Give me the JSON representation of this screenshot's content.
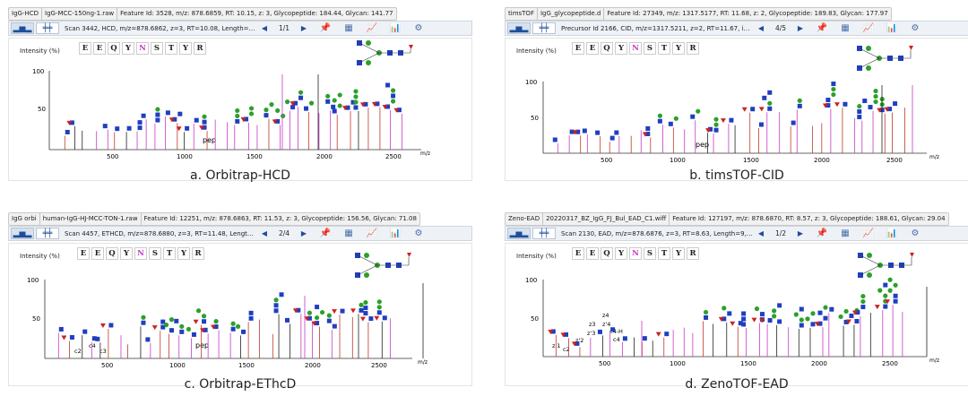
{
  "panels": [
    {
      "id": "a",
      "tabs": [
        "IgG-HCD",
        "IgG-MCC-150ng-1.raw"
      ],
      "feature": "Feature Id: 3528, m/z: 878.6859, RT: 10.15, z: 3, Glycopeptide: 184.44, Glycan: 141.77",
      "scan": "Scan 3442, HCD, m/z=878.6862, z=3, RT=10.08, Length=9, ppm=-1...",
      "page": "1/1",
      "ylabel": "Intensity (%)",
      "ticks_y": [
        "100",
        "50"
      ],
      "ticks_x": [
        "500",
        "1000",
        "1500",
        "2000",
        "2500"
      ],
      "xunit": "m/z",
      "pep_label": "pep",
      "caption": "a. Orbitrap-HCD"
    },
    {
      "id": "b",
      "tabs": [
        "timsTOF",
        "IgG_glycopeptide.d"
      ],
      "feature": "Feature Id: 27349, m/z: 1317.5177, RT: 11.68, z: 2, Glycopeptide: 189.83, Glycan: 177.97",
      "scan": "Precursor Id 2166, CID, m/z=1317.5211, z=2, RT=11.67, im=1.2827, ...",
      "page": "4/5",
      "ylabel": "Intensity (%)",
      "ticks_y": [
        "100",
        "50"
      ],
      "ticks_x": [
        "500",
        "1000",
        "1500",
        "2000",
        "2500"
      ],
      "xunit": "m/z",
      "pep_label": "pep",
      "caption": "b. timsTOF-CID"
    },
    {
      "id": "c",
      "tabs": [
        "IgG orbi",
        "human-IgG-HJ-MCC-TON-1.raw"
      ],
      "feature": "Feature Id: 12251, m/z: 878.6863, RT: 11.53, z: 3, Glycopeptide: 156.56, Glycan: 71.08",
      "scan": "Scan 4457, ETHCD, m/z=878.6880, z=3, RT=11.48, Length=9, ppm=-...",
      "page": "2/4",
      "ylabel": "Intensity (%)",
      "ticks_y": [
        "100",
        "50"
      ],
      "ticks_x": [
        "500",
        "1000",
        "1500",
        "2000",
        "2500"
      ],
      "xunit": "m/z",
      "pep_label": "pep",
      "ion_labels": [
        "c2",
        "c3",
        "c4"
      ],
      "caption": "c. Orbitrap-EThcD"
    },
    {
      "id": "d",
      "tabs": [
        "Zeno-EAD",
        "20220317_BZ_IgG_FJ_Bul_EAD_C1.wiff"
      ],
      "feature": "Feature Id: 127197, m/z: 878.6870, RT: 8.57, z: 3, Glycopeptide: 188.61, Glycan: 29.04",
      "scan": "Scan 2130, EAD, m/z=878.6876, z=3, RT=8.63, Length=9, ppm=...",
      "page": "1/2",
      "ylabel": "Intensity (%)",
      "ticks_y": [
        "100",
        "50"
      ],
      "ticks_x": [
        "500",
        "1000",
        "1500",
        "2000",
        "2500"
      ],
      "xunit": "m/z",
      "ion_labels": [
        "z'1",
        "c2",
        "z'2",
        "z3",
        "z'3",
        "z4",
        "z'4",
        "c4-H",
        "c4"
      ],
      "caption": "d. ZenoTOF-EAD"
    }
  ],
  "peptide": [
    "E",
    "E",
    "Q",
    "Y",
    "N",
    "S",
    "T",
    "Y",
    "R"
  ],
  "colors": {
    "peptide_fragment": "#c73ac7",
    "glycan_fragment": "#c0392b",
    "spectrum": "#222222",
    "axis": "#333333"
  },
  "glycan_symbols": {
    "GlcNAc": "#1f3fbf",
    "Mannose": "#2ca02c",
    "Galactose": "#e8c318",
    "Fucose": "#cc2222"
  }
}
